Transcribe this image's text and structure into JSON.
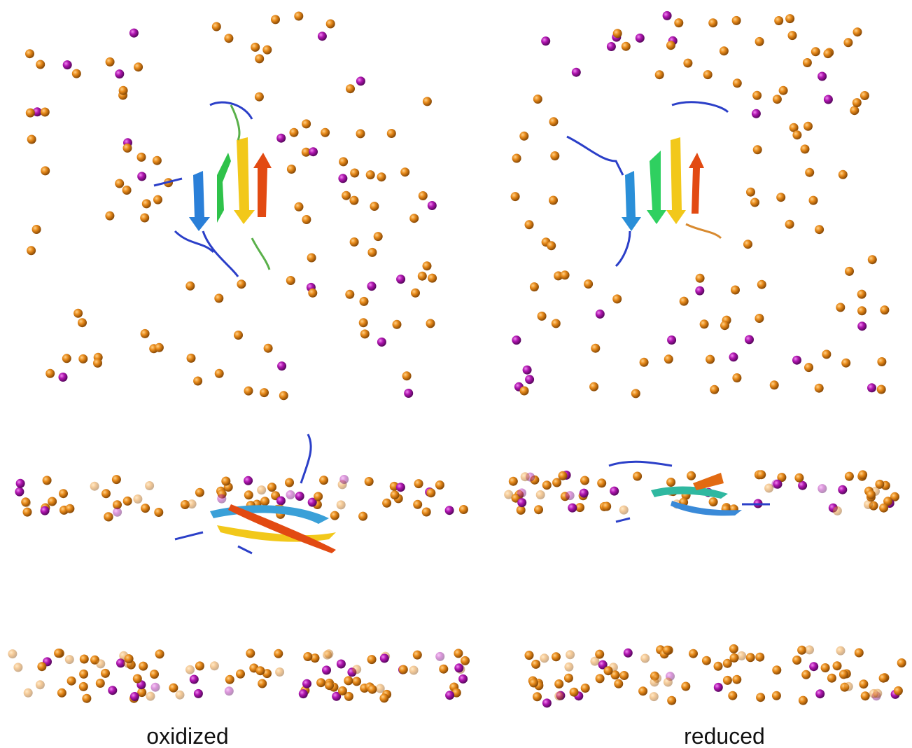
{
  "panels": [
    {
      "label": "oxidized"
    },
    {
      "label": "reduced"
    }
  ]
}
